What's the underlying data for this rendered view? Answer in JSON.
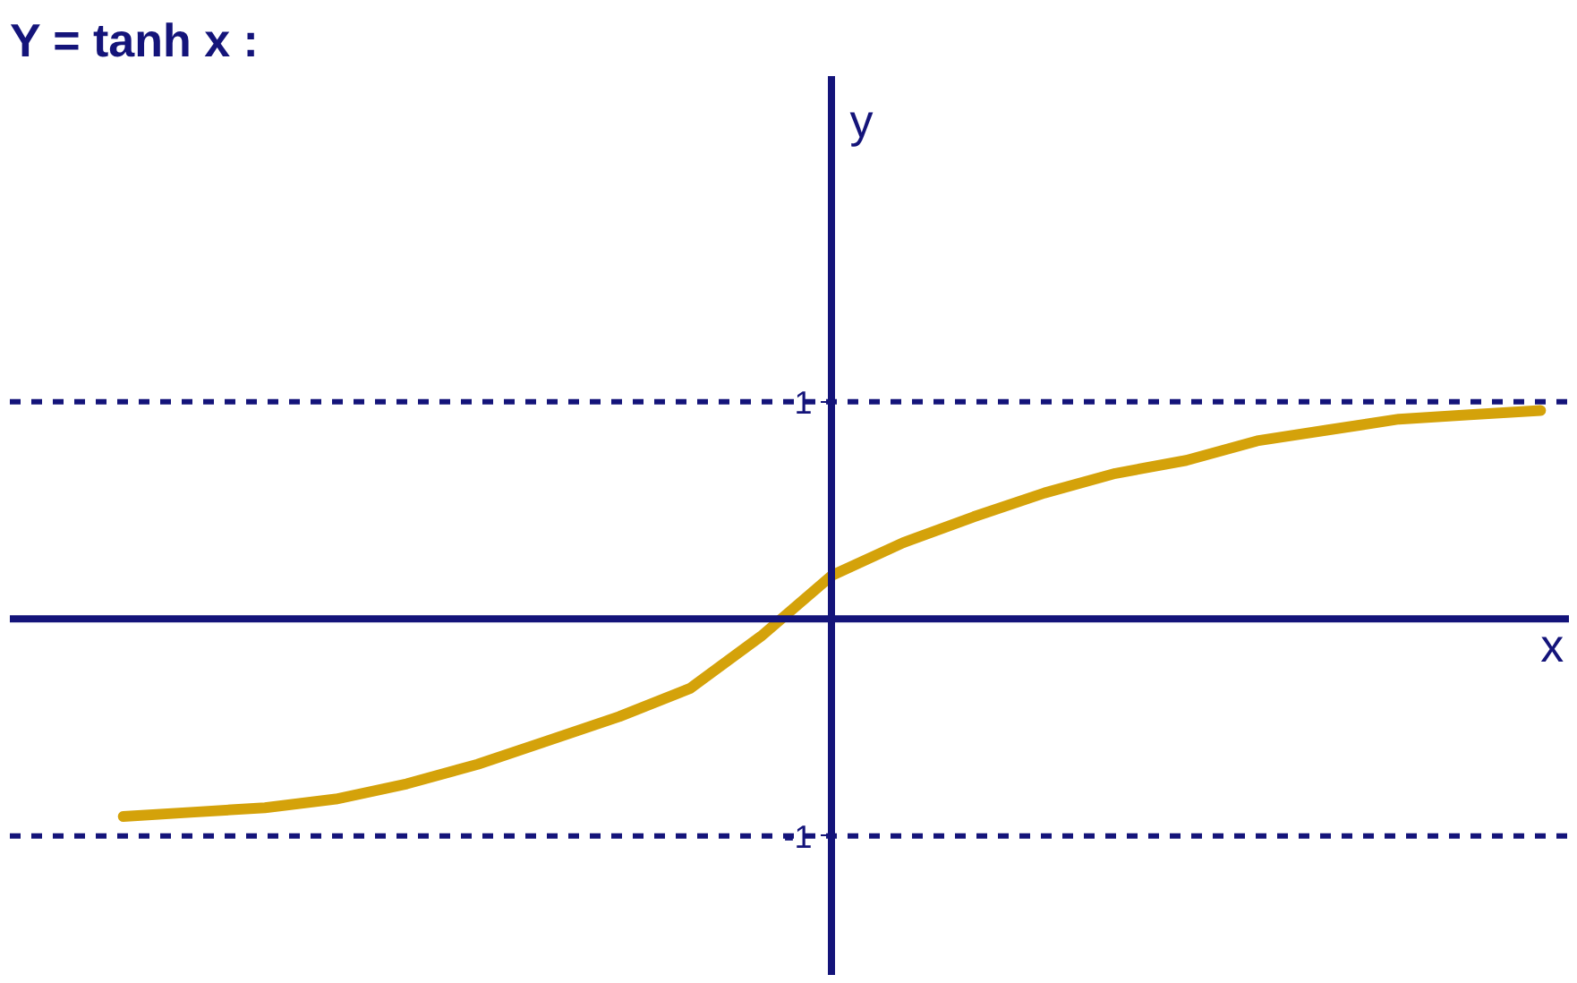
{
  "chart_data": {
    "type": "line",
    "title": "Y = tanh x :",
    "xlabel": "x",
    "ylabel": "y",
    "categories": [
      null,
      null,
      null,
      null,
      null,
      null,
      null,
      null,
      null,
      null,
      null,
      null,
      null,
      null,
      null,
      null,
      null,
      null,
      null,
      null,
      null
    ],
    "series": [
      {
        "color": "#d4a20a",
        "values": [
          -0.91,
          -0.89,
          -0.87,
          -0.83,
          -0.76,
          -0.67,
          -0.56,
          -0.45,
          -0.32,
          -0.08,
          0.2,
          0.35,
          0.47,
          0.58,
          0.67,
          0.73,
          0.82,
          0.87,
          0.92,
          0.94,
          0.96
        ]
      }
    ],
    "ylim": [
      -1.64,
      2.5
    ],
    "yticks": [
      -1,
      1
    ],
    "ref_lines": [
      {
        "axis": "y",
        "value": 0,
        "line_style": "solid",
        "color": "#14147a"
      },
      {
        "axis": "y",
        "value": 1,
        "line_style": "dashed",
        "color": "#14147a"
      },
      {
        "axis": "y",
        "value": -1,
        "line_style": "dashed",
        "color": "#14147a"
      }
    ],
    "tick_labels": "y",
    "grid": false,
    "marker": "none",
    "line_style": "solid"
  }
}
